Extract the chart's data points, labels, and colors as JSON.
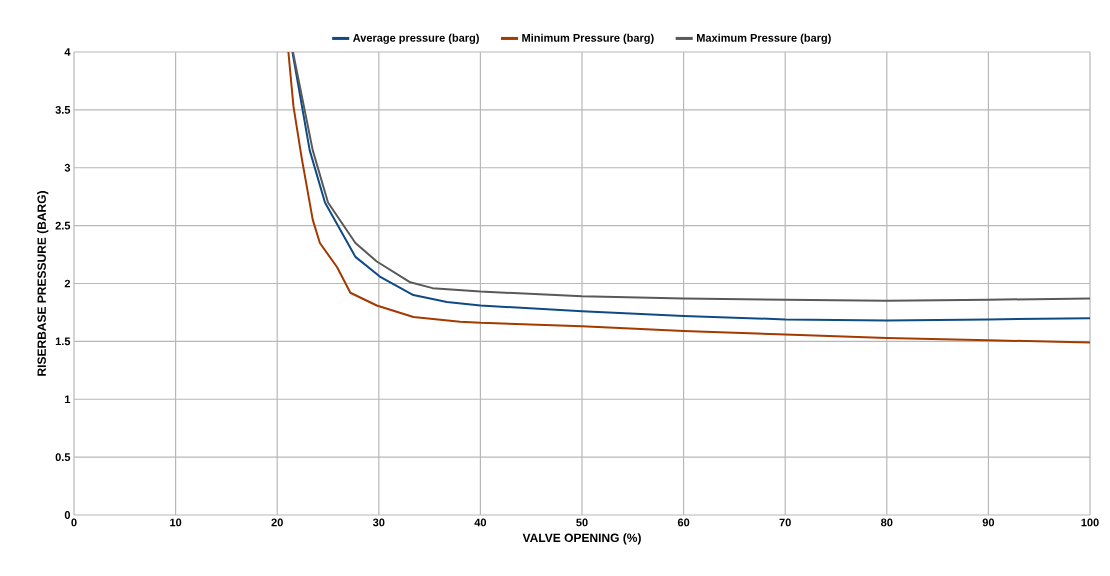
{
  "chart_data": {
    "type": "line",
    "xlabel": "VALVE OPENING (%)",
    "ylabel": "RISERBASE PRESSURE (BARG)",
    "xlim": [
      0,
      100
    ],
    "ylim": [
      0,
      4
    ],
    "xticks": [
      0,
      10,
      20,
      30,
      40,
      50,
      60,
      70,
      80,
      90,
      100
    ],
    "yticks": [
      0,
      0.5,
      1,
      1.5,
      2,
      2.5,
      3,
      3.5,
      4
    ],
    "grid": true,
    "legend": "top",
    "marker": "none",
    "line_style": "solid",
    "series": [
      {
        "name": "Average pressure (barg)",
        "color": "#0e4a86",
        "x": [
          21.5,
          23.2,
          24.7,
          27.7,
          30.1,
          33.4,
          36.7,
          40,
          50,
          60,
          70,
          80,
          90,
          100
        ],
        "values": [
          4,
          3.15,
          2.7,
          2.23,
          2.06,
          1.9,
          1.84,
          1.81,
          1.76,
          1.72,
          1.69,
          1.68,
          1.69,
          1.7
        ]
      },
      {
        "name": "Minimum Pressure (barg)",
        "color": "#a33a00",
        "x": [
          21.1,
          21.6,
          22.4,
          23.5,
          24.2,
          25.9,
          27.2,
          29.8,
          33.4,
          38,
          40,
          50,
          60,
          70,
          80,
          90,
          100
        ],
        "values": [
          4,
          3.53,
          3.09,
          2.55,
          2.35,
          2.14,
          1.92,
          1.81,
          1.71,
          1.67,
          1.66,
          1.63,
          1.59,
          1.56,
          1.53,
          1.51,
          1.49
        ]
      },
      {
        "name": "Maximum Pressure (barg)",
        "color": "#595959",
        "x": [
          21.55,
          23.5,
          25,
          27.7,
          29.8,
          33.1,
          35.3,
          40,
          50,
          60,
          70,
          80,
          90,
          100
        ],
        "values": [
          4,
          3.15,
          2.7,
          2.35,
          2.19,
          2.01,
          1.96,
          1.93,
          1.89,
          1.87,
          1.86,
          1.85,
          1.86,
          1.87
        ]
      }
    ]
  }
}
